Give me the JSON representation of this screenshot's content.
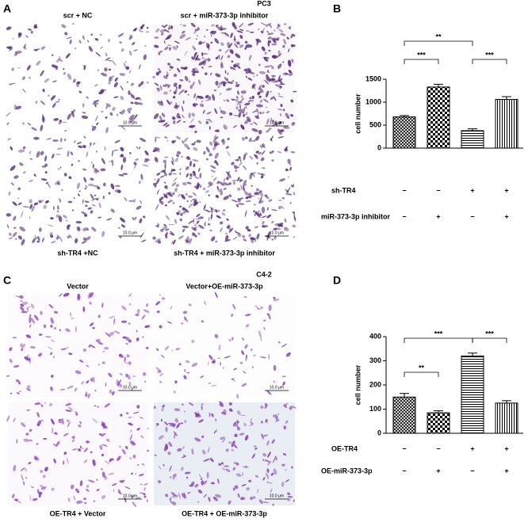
{
  "figures": [
    {
      "panel": "A",
      "title": "PC3",
      "images": [
        {
          "caption": "scr + NC",
          "scale": "10.0 μm"
        },
        {
          "caption": "scr + miR-373-3p inhibitor",
          "scale": "10.0 μm"
        },
        {
          "caption": "sh-TR4 +NC",
          "scale": "10.0 μm"
        },
        {
          "caption": "sh-TR4 + miR-373-3p inhibitor",
          "scale": "10.0 μm"
        }
      ]
    },
    {
      "panel": "C",
      "title": "C4-2",
      "images": [
        {
          "caption": "Vector",
          "scale": "10.0 μm"
        },
        {
          "caption": "Vector+OE-miR-373-3p",
          "scale": "10.0 μm"
        },
        {
          "caption": "OE-TR4 + Vector",
          "scale": "10.0 μm"
        },
        {
          "caption": "OE-TR4 + OE-miR-373-3p",
          "scale": "10.0 μm"
        }
      ]
    }
  ],
  "chart_data": [
    {
      "type": "bar",
      "panel": "B",
      "y_label": "cell number",
      "categories": [
        null,
        null,
        null,
        null
      ],
      "values": [
        680,
        1330,
        380,
        1060
      ],
      "errors": [
        30,
        60,
        40,
        60
      ],
      "patterns": [
        "diagonal-cross",
        "checker",
        "horizontal",
        "vertical"
      ],
      "ylim": [
        0,
        1500
      ],
      "yticks": [
        0,
        500,
        1000,
        1500
      ],
      "annotations": [
        "***",
        "**",
        "***"
      ],
      "conditions": [
        {
          "label": "sh-TR4",
          "signs": [
            "−",
            "−",
            "+",
            "+"
          ]
        },
        {
          "label": "miR-373-3p inhibitor",
          "signs": [
            "−",
            "+",
            "−",
            "+"
          ]
        }
      ]
    },
    {
      "type": "bar",
      "panel": "D",
      "y_label": "cell number",
      "categories": [
        null,
        null,
        null,
        null
      ],
      "values": [
        150,
        85,
        320,
        125
      ],
      "errors": [
        15,
        8,
        12,
        10
      ],
      "patterns": [
        "diagonal-cross",
        "checker",
        "horizontal",
        "vertical"
      ],
      "ylim": [
        0,
        400
      ],
      "yticks": [
        0,
        100,
        200,
        300,
        400
      ],
      "annotations": [
        "**",
        "***",
        "***"
      ],
      "conditions": [
        {
          "label": "OE-TR4",
          "signs": [
            "−",
            "−",
            "+",
            "+"
          ]
        },
        {
          "label": "OE-miR-373-3p",
          "signs": [
            "−",
            "+",
            "−",
            "+"
          ]
        }
      ]
    }
  ]
}
